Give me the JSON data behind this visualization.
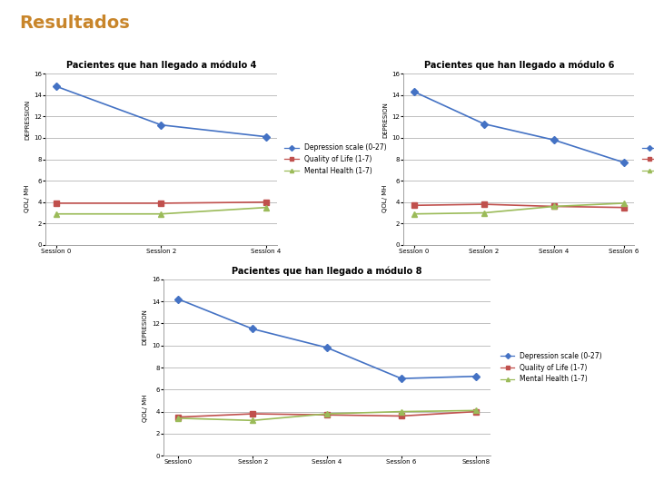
{
  "title": "Resultados",
  "title_color": "#c8852a",
  "background_color": "#ffffff",
  "chart1": {
    "title": "Pacientes que han llegado a módulo 4",
    "sessions": [
      "Session 0",
      "Session 2",
      "Session 4"
    ],
    "depression": [
      14.8,
      11.2,
      10.1
    ],
    "qol": [
      3.9,
      3.9,
      4.0
    ],
    "mh": [
      2.9,
      2.9,
      3.5
    ],
    "ylabel_top": "DEPRESSION",
    "ylabel_bottom": "QOL/ MH",
    "ylim": [
      0,
      16
    ]
  },
  "chart2": {
    "title": "Pacientes que han llegado a módulo 6",
    "sessions": [
      "Session 0",
      "Session 2",
      "Session 4",
      "Session 6"
    ],
    "depression": [
      14.3,
      11.3,
      9.8,
      7.7
    ],
    "qol": [
      3.7,
      3.8,
      3.6,
      3.5
    ],
    "mh": [
      2.9,
      3.0,
      3.6,
      3.9
    ],
    "ylabel_top": "DEPRESION",
    "ylabel_bottom": "QOL/ MH",
    "ylim": [
      0,
      16
    ]
  },
  "chart3": {
    "title": "Pacientes que han llegado a módulo 8",
    "sessions": [
      "Session0",
      "Session 2",
      "Session 4",
      "Session 6",
      "Session8"
    ],
    "depression": [
      14.2,
      11.5,
      9.8,
      7.0,
      7.2
    ],
    "qol": [
      3.5,
      3.8,
      3.7,
      3.6,
      4.0
    ],
    "mh": [
      3.4,
      3.2,
      3.8,
      4.0,
      4.1
    ],
    "ylabel_top": "DEPRESION",
    "ylabel_bottom": "QOL/ MH",
    "ylim": [
      0,
      16
    ]
  },
  "legend_labels": [
    "Depression scale (0-27)",
    "Quality of Life (1-7)",
    "Mental Health (1-7)"
  ],
  "colors": {
    "depression": "#4472C4",
    "qol": "#C0504D",
    "mh": "#9BBB59"
  },
  "grid_color": "#BFBFBF",
  "line_width": 1.2,
  "marker_dep": "D",
  "marker_qol": "s",
  "marker_mh": "^",
  "marker_size": 4,
  "title_fontsize": 14,
  "chart_title_fontsize": 7,
  "tick_fontsize": 5,
  "legend_fontsize": 5.5
}
